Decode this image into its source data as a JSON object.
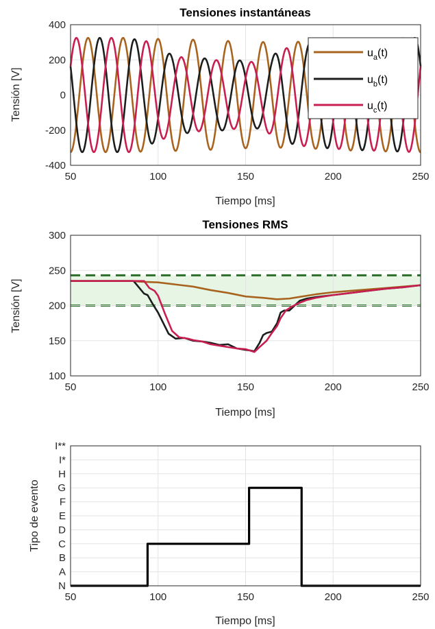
{
  "chart_data": [
    {
      "type": "line",
      "title": "Tensiones instantáneas",
      "xlabel": "Tiempo [ms]",
      "ylabel": "Tensión [V]",
      "xlim": [
        50,
        250
      ],
      "ylim": [
        -400,
        400
      ],
      "xticks": [
        "50",
        "100",
        "150",
        "200",
        "250"
      ],
      "yticks": [
        "-400",
        "-200",
        "0",
        "200",
        "400"
      ],
      "grid": true,
      "legend_position": "top-right",
      "frequency_hz": 50,
      "series": [
        {
          "name": "u_a(t)",
          "label_main": "u",
          "label_sub": "a",
          "label_tail": "(t)",
          "color": "#a8641e",
          "phase_deg": 90,
          "amplitude": {
            "x": [
              50,
              85,
              95,
              110,
              130,
              150,
              170,
              190,
              210,
              250
            ],
            "y": [
              325,
              325,
              320,
              318,
              312,
              303,
              300,
              306,
              316,
              326
            ]
          }
        },
        {
          "name": "u_b(t)",
          "label_main": "u",
          "label_sub": "b",
          "label_tail": "(t)",
          "color": "#1c1e1e",
          "phase_deg": -30,
          "amplitude": {
            "x": [
              50,
              85,
              92,
              100,
              110,
              120,
              130,
              150,
              158,
              165,
              170,
              178,
              190,
              210,
              250
            ],
            "y": [
              325,
              325,
              292,
              265,
              220,
              215,
              205,
              195,
              190,
              215,
              270,
              280,
              298,
              312,
              326
            ]
          }
        },
        {
          "name": "u_c(t)",
          "label_main": "u",
          "label_sub": "c",
          "label_tail": "(t)",
          "color": "#c81e50",
          "phase_deg": 210,
          "amplitude": {
            "x": [
              50,
              88,
              95,
              102,
              110,
              120,
              130,
              150,
              155,
              160,
              168,
              178,
              190,
              210,
              250
            ],
            "y": [
              325,
              325,
              300,
              255,
              218,
              210,
              200,
              190,
              188,
              200,
              245,
              285,
              298,
              312,
              326
            ]
          }
        }
      ]
    },
    {
      "type": "line",
      "title": "Tensiones RMS",
      "xlabel": "Tiempo [ms]",
      "ylabel": "Tensión [V]",
      "xlim": [
        50,
        250
      ],
      "ylim": [
        100,
        300
      ],
      "xticks": [
        "50",
        "100",
        "150",
        "200",
        "250"
      ],
      "yticks": [
        "100",
        "150",
        "200",
        "250",
        "300"
      ],
      "grid": true,
      "band": {
        "low": 200,
        "high": 243,
        "fill": "#e6f5e4",
        "line_color": "#2a6e2a"
      },
      "series": [
        {
          "name": "u_a",
          "color": "#a8641e",
          "x": [
            50,
            85,
            90,
            100,
            110,
            120,
            130,
            140,
            150,
            160,
            168,
            175,
            180,
            190,
            200,
            210,
            220,
            230,
            240,
            250
          ],
          "y": [
            235,
            235,
            234,
            233,
            230,
            227,
            222,
            218,
            213,
            211,
            209,
            210,
            212,
            216,
            219,
            221,
            223,
            225,
            227,
            229
          ]
        },
        {
          "name": "u_b",
          "color": "#1c1e1e",
          "x": [
            50,
            86,
            89,
            92,
            94,
            97,
            100,
            103,
            106,
            110,
            115,
            120,
            125,
            130,
            135,
            140,
            145,
            150,
            153,
            155,
            158,
            160,
            162,
            165,
            168,
            170,
            172,
            175,
            178,
            181,
            185,
            190,
            200,
            210,
            220,
            230,
            240,
            250
          ],
          "y": [
            235,
            235,
            226,
            217,
            215,
            202,
            190,
            175,
            160,
            153,
            154,
            150,
            149,
            147,
            144,
            145,
            139,
            137,
            136,
            135,
            147,
            158,
            161,
            163,
            175,
            190,
            193,
            193,
            200,
            207,
            210,
            212,
            215,
            218,
            221,
            224,
            226,
            229
          ]
        },
        {
          "name": "u_c",
          "color": "#c81e50",
          "x": [
            50,
            86,
            92,
            95,
            98,
            100,
            104,
            108,
            112,
            117,
            120,
            125,
            130,
            135,
            140,
            145,
            150,
            155,
            158,
            162,
            165,
            168,
            170,
            173,
            176,
            180,
            185,
            190,
            200,
            210,
            220,
            230,
            240,
            250
          ],
          "y": [
            235,
            235,
            235,
            225,
            221,
            214,
            188,
            164,
            155,
            153,
            151,
            149,
            145,
            143,
            141,
            139,
            138,
            134,
            141,
            150,
            161,
            171,
            182,
            193,
            198,
            203,
            208,
            211,
            215,
            218,
            221,
            224,
            226,
            229
          ]
        }
      ]
    },
    {
      "type": "line",
      "title": "",
      "xlabel": "Tiempo [ms]",
      "ylabel": "Tipo de evento",
      "xlim": [
        50,
        250
      ],
      "xticks": [
        "50",
        "100",
        "150",
        "200",
        "250"
      ],
      "categories": [
        "N",
        "A",
        "B",
        "C",
        "D",
        "E",
        "F",
        "G",
        "H",
        "I*",
        "I**"
      ],
      "grid": true,
      "series": [
        {
          "name": "evento",
          "color": "#000000",
          "x": [
            50,
            94,
            94,
            152,
            152,
            182,
            182,
            250
          ],
          "y": [
            "N",
            "N",
            "C",
            "C",
            "G",
            "G",
            "N",
            "N"
          ]
        }
      ]
    }
  ]
}
